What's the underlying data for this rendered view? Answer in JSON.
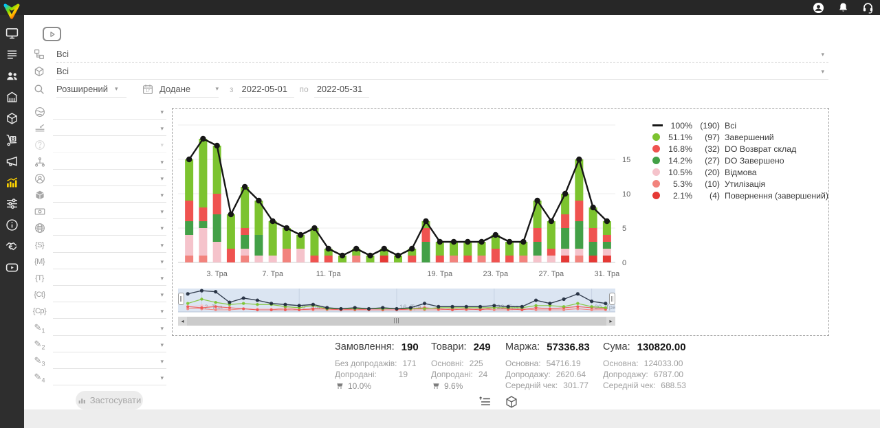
{
  "ui": {
    "caret": "▾",
    "scroll_left": "◂",
    "scroll_right": "▸",
    "grip": "|||"
  },
  "topbar": {
    "icons": [
      "profile-icon",
      "notifications-bell-icon",
      "support-headset-icon"
    ]
  },
  "sidebar": {
    "icons": [
      "dashboard-monitor-icon",
      "orders-list-icon",
      "clients-icon",
      "store-icon",
      "products-box-icon",
      "purchases-cart-icon",
      "marketing-megaphone-icon",
      "analytics-chart-icon",
      "automation-sliders-icon",
      "info-icon",
      "partners-handshake-icon",
      "video-tutorials-icon"
    ],
    "active": "analytics-chart-icon",
    "active_color": "#ffd400"
  },
  "filters": {
    "category_value": "Всі",
    "product_value": "Всі",
    "search_mode": "Розширений",
    "date_field": "Додане",
    "from_label": "з",
    "date_from": "2022-05-01",
    "to_label": "по",
    "date_to": "2022-05-31",
    "apply_label": "Застосувати",
    "side_rows": [
      {
        "icon": "globe-solid-icon"
      },
      {
        "icon": "shelf-level-icon"
      },
      {
        "icon": "question-icon",
        "disabled": true
      },
      {
        "icon": "hierarchy-icon"
      },
      {
        "icon": "manager-icon"
      },
      {
        "icon": "product-cube-icon"
      },
      {
        "icon": "payment-icon"
      },
      {
        "icon": "website-icon"
      },
      {
        "icon": "utm-source-icon",
        "glyph": "{S}"
      },
      {
        "icon": "utm-medium-icon",
        "glyph": "{M}"
      },
      {
        "icon": "utm-term-icon",
        "glyph": "{T}"
      },
      {
        "icon": "utm-content-icon",
        "glyph": "{Ct}"
      },
      {
        "icon": "utm-campaign-icon",
        "glyph": "{Cp}"
      },
      {
        "icon": "custom-field-1-icon",
        "glyph": "✎",
        "sub": "1"
      },
      {
        "icon": "custom-field-2-icon",
        "glyph": "✎",
        "sub": "2"
      },
      {
        "icon": "custom-field-3-icon",
        "glyph": "✎",
        "sub": "3"
      },
      {
        "icon": "custom-field-4-icon",
        "glyph": "✎",
        "sub": "4"
      }
    ]
  },
  "chart_data": {
    "type": "bar",
    "subtype": "stacked-bars-with-total-line",
    "x_unit": "day of May (Тра), 2022-05-01..2022-05-31",
    "categories": [
      1,
      2,
      3,
      4,
      5,
      6,
      7,
      8,
      9,
      10,
      11,
      12,
      13,
      14,
      15,
      16,
      17,
      18,
      19,
      20,
      21,
      22,
      23,
      24,
      25,
      26,
      27,
      28,
      29,
      30,
      31
    ],
    "series": [
      {
        "name": "Завершений",
        "color": "#7cc32f",
        "percent": "51.1%",
        "count": 97,
        "values": [
          6,
          10,
          7,
          5,
          6,
          5,
          5,
          3,
          2,
          4,
          1,
          1,
          1,
          1,
          1,
          1,
          1,
          1,
          2,
          2,
          2,
          2,
          2,
          2,
          2,
          4,
          4,
          3,
          6,
          3,
          2
        ]
      },
      {
        "name": "DO Возврат склад",
        "color": "#ef5350",
        "percent": "16.8%",
        "count": 32,
        "values": [
          3,
          2,
          3,
          2,
          1,
          0,
          0,
          0,
          0,
          1,
          1,
          0,
          0,
          0,
          0,
          0,
          1,
          2,
          1,
          0,
          1,
          0,
          2,
          1,
          0,
          2,
          1,
          2,
          3,
          2,
          1
        ]
      },
      {
        "name": "DO Завершено",
        "color": "#43a047",
        "percent": "14.2%",
        "count": 27,
        "values": [
          2,
          1,
          4,
          0,
          2,
          3,
          0,
          0,
          0,
          0,
          0,
          0,
          0,
          0,
          0,
          0,
          0,
          3,
          0,
          0,
          0,
          0,
          0,
          0,
          0,
          2,
          0,
          3,
          4,
          2,
          1
        ]
      },
      {
        "name": "Відмова",
        "color": "#f5c3cb",
        "percent": "10.5%",
        "count": 20,
        "values": [
          3,
          4,
          3,
          0,
          1,
          1,
          1,
          0,
          2,
          0,
          0,
          0,
          0,
          0,
          0,
          0,
          0,
          0,
          0,
          0,
          0,
          0,
          0,
          0,
          0,
          1,
          1,
          1,
          1,
          0,
          1
        ]
      },
      {
        "name": "Утилізація",
        "color": "#f2837d",
        "percent": "5.3%",
        "count": 10,
        "values": [
          1,
          1,
          0,
          0,
          1,
          0,
          0,
          2,
          0,
          0,
          0,
          0,
          1,
          0,
          0,
          0,
          0,
          0,
          0,
          1,
          0,
          1,
          0,
          0,
          1,
          0,
          0,
          0,
          1,
          0,
          0
        ]
      },
      {
        "name": "Повернення (завершений)",
        "color": "#e53935",
        "percent": "2.1%",
        "count": 4,
        "values": [
          0,
          0,
          0,
          0,
          0,
          0,
          0,
          0,
          0,
          0,
          0,
          0,
          0,
          0,
          1,
          0,
          0,
          0,
          0,
          0,
          0,
          0,
          0,
          0,
          0,
          0,
          0,
          1,
          0,
          1,
          1
        ]
      }
    ],
    "line": {
      "name": "Всі",
      "color": "#161616",
      "percent": "100%",
      "count": 190,
      "values": [
        15,
        18,
        17,
        7,
        11,
        9,
        6,
        5,
        4,
        5,
        2,
        1,
        2,
        1,
        2,
        1,
        2,
        6,
        3,
        3,
        3,
        3,
        4,
        3,
        3,
        9,
        6,
        10,
        15,
        8,
        6
      ]
    },
    "legend": [
      {
        "marker": "line",
        "color": "#161616",
        "percent": "100%",
        "count": "(190)",
        "label": "Всі"
      },
      {
        "marker": "dot",
        "color": "#7cc32f",
        "percent": "51.1%",
        "count": "(97)",
        "label": "Завершений"
      },
      {
        "marker": "dot",
        "color": "#ef5350",
        "percent": "16.8%",
        "count": "(32)",
        "label": "DO Возврат склад"
      },
      {
        "marker": "dot",
        "color": "#43a047",
        "percent": "14.2%",
        "count": "(27)",
        "label": "DO Завершено"
      },
      {
        "marker": "dot",
        "color": "#f5c3cb",
        "percent": "10.5%",
        "count": "(20)",
        "label": "Відмова"
      },
      {
        "marker": "dot",
        "color": "#f2837d",
        "percent": "5.3%",
        "count": "(10)",
        "label": "Утилізація"
      },
      {
        "marker": "dot",
        "color": "#e53935",
        "percent": "2.1%",
        "count": "(4)",
        "label": "Повернення (завершений)"
      }
    ],
    "ylim": [
      0,
      21.5
    ],
    "yticks": [
      0,
      5,
      10,
      15
    ],
    "grid_values": [
      0,
      5,
      10,
      15,
      20
    ],
    "xticks": {
      "positions": [
        3,
        7,
        11,
        19,
        23,
        27,
        31
      ],
      "labels": [
        "3. Тра",
        "7. Тра",
        "11. Тра",
        "19. Тра",
        "23. Тра",
        "27. Тра",
        "31. Тра"
      ]
    },
    "navigator": {
      "positions": [
        2,
        9,
        16,
        23,
        30
      ],
      "labels": [
        "2. Тра",
        "9. Тра",
        "16. Тра",
        "23. Тра",
        "30. Тра"
      ],
      "total_color": "#202b3d"
    },
    "legend_position": "right",
    "grid": true
  },
  "stats": {
    "columns": [
      {
        "title": "Замовлення:",
        "value": "190",
        "rows": [
          {
            "label": "Без допродажів:",
            "value": "171"
          },
          {
            "label": "Допродані:",
            "value": "19"
          }
        ],
        "cart_percent": "10.0%"
      },
      {
        "title": "Товари:",
        "value": "249",
        "rows": [
          {
            "label": "Основні:",
            "value": "225"
          },
          {
            "label": "Допродані:",
            "value": "24"
          }
        ],
        "cart_percent": "9.6%"
      },
      {
        "title": "Маржа:",
        "value": "57336.83",
        "rows": [
          {
            "label": "Основна:",
            "value": "54716.19"
          },
          {
            "label": "Допродажу:",
            "value": "2620.64"
          },
          {
            "label": "Середній чек:",
            "value": "301.77"
          }
        ]
      },
      {
        "title": "Сума:",
        "value": "130820.00",
        "rows": [
          {
            "label": "Основна:",
            "value": "124033.00"
          },
          {
            "label": "Допродажу:",
            "value": "6787.00"
          },
          {
            "label": "Середній чек:",
            "value": "688.53"
          }
        ]
      }
    ]
  }
}
